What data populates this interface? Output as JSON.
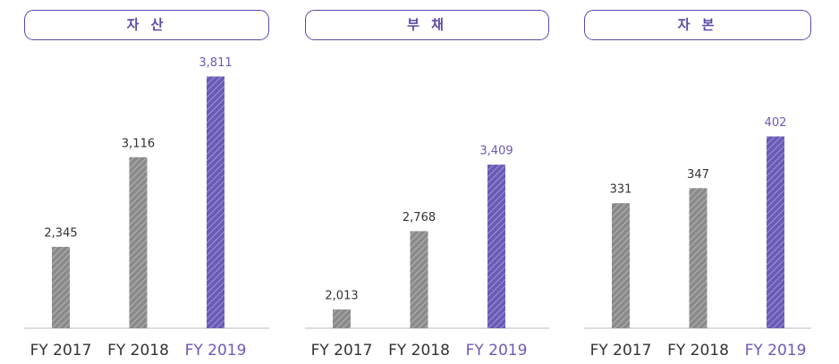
{
  "chart_data": [
    {
      "type": "bar",
      "title": "자 산",
      "categories": [
        "FY 2017",
        "FY 2018",
        "FY 2019"
      ],
      "values": [
        2345,
        3116,
        3811
      ],
      "value_labels": [
        "2,345",
        "3,116",
        "3,811"
      ],
      "colors": [
        "#8a8a8a",
        "#8a8a8a",
        "#6a5bb8"
      ],
      "label_colors": [
        "#333333",
        "#333333",
        "#6a5bb8"
      ],
      "ylim": [
        1645,
        4007
      ]
    },
    {
      "type": "bar",
      "title": "부 채",
      "categories": [
        "FY 2017",
        "FY 2018",
        "FY 2019"
      ],
      "values": [
        2013,
        2768,
        3409
      ],
      "value_labels": [
        "2,013",
        "2,768",
        "3,409"
      ],
      "colors": [
        "#8a8a8a",
        "#8a8a8a",
        "#6a5bb8"
      ],
      "label_colors": [
        "#333333",
        "#333333",
        "#6a5bb8"
      ],
      "ylim": [
        1832,
        4479
      ]
    },
    {
      "type": "bar",
      "title": "자 본",
      "categories": [
        "FY 2017",
        "FY 2018",
        "FY 2019"
      ],
      "values": [
        331,
        347,
        402
      ],
      "colors": [
        "#8a8a8a",
        "#8a8a8a",
        "#6a5bb8"
      ],
      "label_colors": [
        "#333333",
        "#333333",
        "#6a5bb8"
      ],
      "ylim": [
        198,
        490
      ]
    }
  ]
}
